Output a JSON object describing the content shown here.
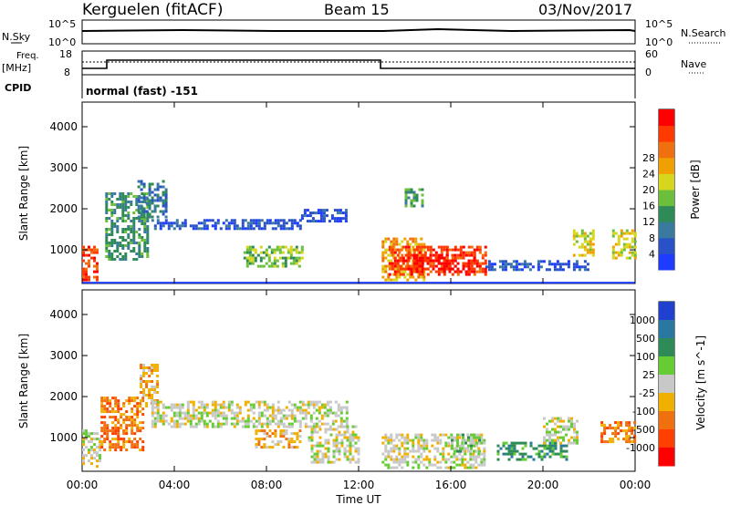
{
  "header": {
    "station": "Kerguelen (fitACF)",
    "beam": "Beam 15",
    "date": "03/Nov/2017"
  },
  "top_panel": {
    "nsky_label": "N.Sky",
    "nsearch_label": "N.Search",
    "left_ticks": [
      "10^5",
      "10^0"
    ],
    "right_ticks": [
      "10^5",
      "10^0"
    ]
  },
  "freq_panel": {
    "freq_label_1": "Freq.",
    "freq_label_2": "[MHz]",
    "nave_label": "Nave",
    "cpid_label": "CPID",
    "left_ticks": [
      "18",
      "8"
    ],
    "right_ticks": [
      "60",
      "0"
    ],
    "cpid_text": "normal (fast) -151"
  },
  "chart_data": [
    {
      "type": "heatmap",
      "title": "",
      "ylabel": "Slant Range [km]",
      "xlabel": "Time UT",
      "x_ticks": [
        "00:00",
        "04:00",
        "08:00",
        "12:00",
        "16:00",
        "20:00",
        "00:00"
      ],
      "y_ticks": [
        1000,
        2000,
        3000,
        4000
      ],
      "ylim": [
        180,
        4600
      ],
      "colorbar": {
        "label": "Power [dB]",
        "ticks": [
          "4",
          "8",
          "12",
          "16",
          "20",
          "24",
          "28"
        ],
        "colors": [
          "#1e3cff",
          "#2a52c8",
          "#3a7a9e",
          "#2e8b57",
          "#6cbf3a",
          "#d6d61c",
          "#f0a000",
          "#f07010",
          "#ff3a00",
          "#ff0000"
        ]
      },
      "regions": [
        {
          "t0": 0.0,
          "t1": 0.6,
          "r0": 300,
          "r1": 1100,
          "level": 8
        },
        {
          "t0": 1.0,
          "t1": 2.8,
          "r0": 800,
          "r1": 2400,
          "level": 3
        },
        {
          "t0": 2.4,
          "t1": 3.6,
          "r0": 1800,
          "r1": 2700,
          "level": 2
        },
        {
          "t0": 3.0,
          "t1": 9.5,
          "r0": 1500,
          "r1": 1750,
          "level": 1
        },
        {
          "t0": 7.0,
          "t1": 9.5,
          "r0": 600,
          "r1": 1100,
          "level": 4
        },
        {
          "t0": 9.5,
          "t1": 11.5,
          "r0": 1700,
          "r1": 2000,
          "level": 1
        },
        {
          "t0": 13.0,
          "t1": 14.8,
          "r0": 300,
          "r1": 1300,
          "level": 6
        },
        {
          "t0": 13.3,
          "t1": 17.5,
          "r0": 400,
          "r1": 1100,
          "level": 8
        },
        {
          "t0": 14.0,
          "t1": 17.0,
          "r0": 500,
          "r1": 900,
          "level": 9
        },
        {
          "t0": 14.0,
          "t1": 14.8,
          "r0": 2100,
          "r1": 2500,
          "level": 3
        },
        {
          "t0": 17.5,
          "t1": 22.0,
          "r0": 550,
          "r1": 750,
          "level": 1
        },
        {
          "t0": 21.3,
          "t1": 22.2,
          "r0": 900,
          "r1": 1500,
          "level": 5
        },
        {
          "t0": 23.0,
          "t1": 24.0,
          "r0": 800,
          "r1": 1500,
          "level": 5
        }
      ]
    },
    {
      "type": "heatmap",
      "title": "",
      "ylabel": "Slant Range [km]",
      "xlabel": "Time UT",
      "x_ticks": [
        "00:00",
        "04:00",
        "08:00",
        "12:00",
        "16:00",
        "20:00",
        "00:00"
      ],
      "y_ticks": [
        1000,
        2000,
        3000,
        4000
      ],
      "ylim": [
        180,
        4600
      ],
      "colorbar": {
        "label": "Velocity [m s^-1]",
        "ticks": [
          "1000",
          "500",
          "100",
          "25",
          "-25",
          "-100",
          "-500",
          "-1000"
        ],
        "colors": [
          "#2040d0",
          "#2a78a0",
          "#2e8b57",
          "#66cc33",
          "#c8c8c8",
          "#f0b000",
          "#f07010",
          "#ff4000",
          "#ff0000"
        ]
      },
      "regions": [
        {
          "t0": 0.0,
          "t1": 0.8,
          "r0": 300,
          "r1": 1200,
          "level": 4
        },
        {
          "t0": 0.8,
          "t1": 2.6,
          "r0": 700,
          "r1": 2000,
          "level": 6
        },
        {
          "t0": 2.5,
          "t1": 3.3,
          "r0": 1800,
          "r1": 2800,
          "level": 5
        },
        {
          "t0": 3.0,
          "t1": 11.5,
          "r0": 1300,
          "r1": 1900,
          "level": 4
        },
        {
          "t0": 7.5,
          "t1": 9.5,
          "r0": 800,
          "r1": 1200,
          "level": 5
        },
        {
          "t0": 9.8,
          "t1": 12.0,
          "r0": 400,
          "r1": 1300,
          "level": 4
        },
        {
          "t0": 13.0,
          "t1": 17.5,
          "r0": 300,
          "r1": 1100,
          "level": 4
        },
        {
          "t0": 16.0,
          "t1": 17.2,
          "r0": 700,
          "r1": 1100,
          "level": 3
        },
        {
          "t0": 18.0,
          "t1": 21.0,
          "r0": 500,
          "r1": 900,
          "level": 2
        },
        {
          "t0": 20.0,
          "t1": 21.5,
          "r0": 900,
          "r1": 1500,
          "level": 4
        },
        {
          "t0": 22.5,
          "t1": 24.0,
          "r0": 900,
          "r1": 1400,
          "level": 6
        }
      ]
    }
  ]
}
